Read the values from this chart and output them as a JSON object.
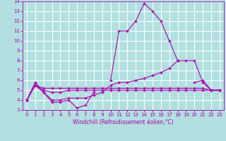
{
  "xlabel": "Windchill (Refroidissement éolien,°C)",
  "background_color": "#b2e0e0",
  "grid_color": "#ffffff",
  "line_color": "#aa00aa",
  "x_values": [
    0,
    1,
    2,
    3,
    4,
    5,
    6,
    7,
    8,
    9,
    10,
    11,
    12,
    13,
    14,
    15,
    16,
    17,
    18,
    19,
    20,
    21,
    22,
    23
  ],
  "series": [
    [
      4.0,
      5.8,
      4.8,
      3.8,
      3.8,
      4.0,
      3.2,
      3.5,
      4.8,
      null,
      6.0,
      11.0,
      11.0,
      12.0,
      13.8,
      13.0,
      12.0,
      10.0,
      8.0,
      null,
      5.8,
      6.0,
      5.0,
      5.0
    ],
    [
      4.0,
      5.5,
      5.2,
      5.2,
      5.2,
      5.2,
      5.2,
      5.2,
      5.2,
      5.2,
      5.2,
      5.2,
      5.2,
      5.2,
      5.2,
      5.2,
      5.2,
      5.2,
      5.2,
      5.2,
      5.2,
      5.2,
      5.0,
      5.0
    ],
    [
      4.0,
      5.5,
      4.8,
      4.0,
      4.0,
      4.2,
      4.2,
      4.2,
      4.5,
      4.8,
      5.5,
      5.8,
      5.8,
      6.0,
      6.2,
      6.5,
      6.8,
      7.2,
      8.0,
      8.0,
      8.0,
      5.8,
      5.0,
      5.0
    ],
    [
      4.0,
      5.5,
      5.0,
      4.8,
      4.8,
      5.0,
      5.0,
      5.0,
      5.0,
      5.0,
      5.0,
      5.0,
      5.0,
      5.0,
      5.0,
      5.0,
      5.0,
      5.0,
      5.0,
      5.0,
      5.0,
      5.0,
      5.0,
      5.0
    ]
  ],
  "ylim": [
    3,
    14
  ],
  "xlim": [
    -0.5,
    23.5
  ],
  "yticks": [
    3,
    4,
    5,
    6,
    7,
    8,
    9,
    10,
    11,
    12,
    13,
    14
  ],
  "xticks": [
    0,
    1,
    2,
    3,
    4,
    5,
    6,
    7,
    8,
    9,
    10,
    11,
    12,
    13,
    14,
    15,
    16,
    17,
    18,
    19,
    20,
    21,
    22,
    23
  ],
  "tick_fontsize": 5.0,
  "xlabel_fontsize": 5.5
}
